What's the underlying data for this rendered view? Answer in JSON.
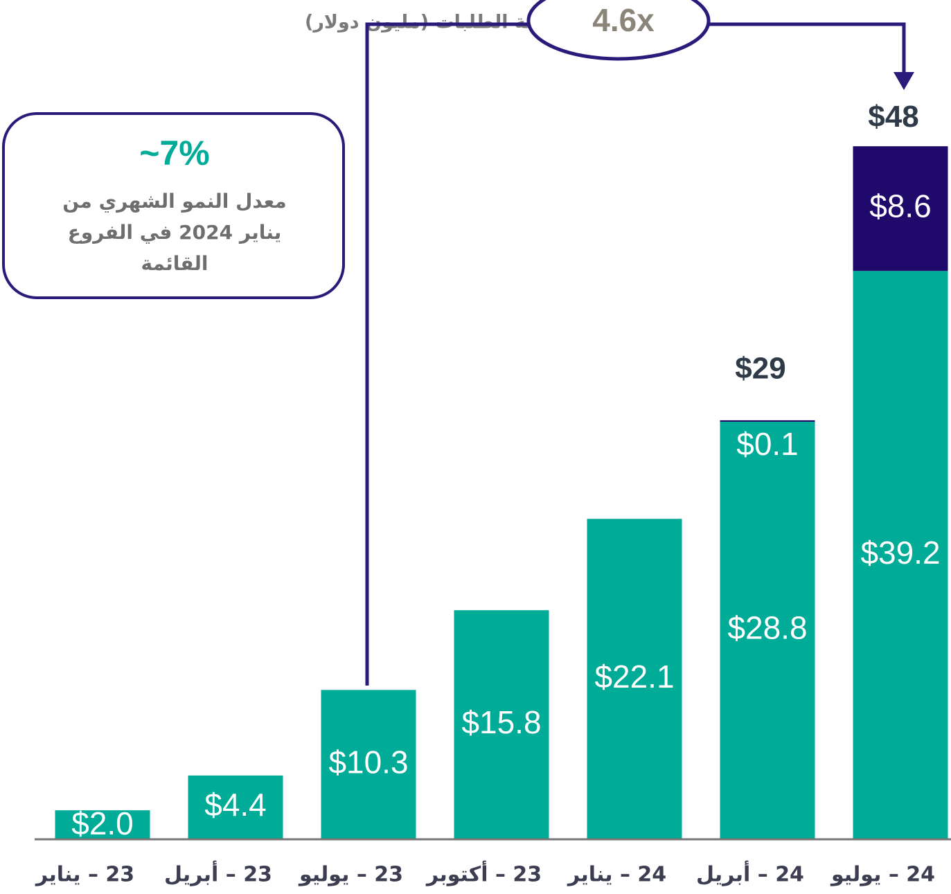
{
  "chart_data": {
    "type": "stacked_bar",
    "title": "قيمة الطلبات (مليون دولار)",
    "categories": [
      "23 – يناير",
      "23 – أبريل",
      "23 – يوليو",
      "23 – أكتوبر",
      "24 – يناير",
      "24 – أبريل",
      "24 – يوليو"
    ],
    "series": [
      {
        "color": "#00ab97",
        "values": [
          2.0,
          4.4,
          10.3,
          15.8,
          22.1,
          28.8,
          39.2
        ],
        "value_labels": [
          "$2.0",
          "$4.4",
          "$10.3",
          "$15.8",
          "$22.1",
          "$28.8",
          "$39.2"
        ]
      },
      {
        "color": "#1f0a6b",
        "values": [
          null,
          null,
          null,
          null,
          null,
          0.1,
          8.6
        ],
        "value_labels": [
          null,
          null,
          null,
          null,
          null,
          "$0.1",
          "$8.6"
        ]
      }
    ],
    "totals": {
      "values": [
        null,
        null,
        null,
        null,
        null,
        29,
        48
      ],
      "value_labels": [
        null,
        null,
        null,
        null,
        null,
        "$29",
        "$48"
      ]
    },
    "growth_annotation": {
      "label": "4.6x"
    },
    "callout": {
      "headline": "~7%",
      "lines": [
        "معدل النمو الشهري من",
        "يناير 2024 في الفروع",
        "القائمة"
      ]
    }
  }
}
